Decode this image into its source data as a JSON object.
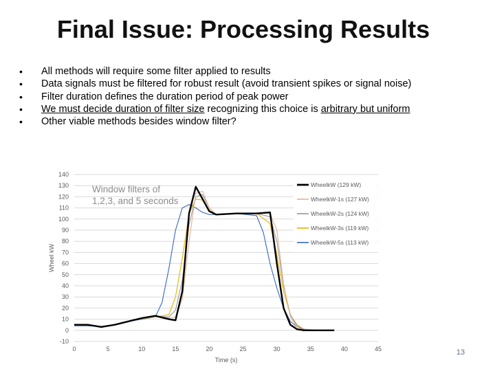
{
  "slide": {
    "title": "Final Issue: Processing Results",
    "bullet_glyph": "•",
    "bullets": [
      {
        "parts": [
          {
            "text": "All methods will require some filter applied to results",
            "u": false
          }
        ]
      },
      {
        "parts": [
          {
            "text": "Data signals must be filtered for robust result (avoid transient spikes or signal noise)",
            "u": false
          }
        ]
      },
      {
        "parts": [
          {
            "text": "Filter duration defines the duration period of peak power",
            "u": false
          }
        ]
      },
      {
        "parts": [
          {
            "text": "We must decide duration of filter size",
            "u": true
          },
          {
            "text": " recognizing this choice is ",
            "u": false
          },
          {
            "text": "arbitrary but uniform",
            "u": true
          }
        ]
      },
      {
        "parts": [
          {
            "text": "Other viable methods besides window filter?",
            "u": false
          }
        ]
      }
    ],
    "page_number": "13"
  },
  "chart_data": {
    "type": "line",
    "xlabel": "Time (s)",
    "ylabel": "Wheel kW",
    "xlim": [
      0,
      45
    ],
    "ylim": [
      -10,
      140
    ],
    "xticks": [
      0,
      5,
      10,
      15,
      20,
      25,
      30,
      35,
      40,
      45
    ],
    "yticks": [
      -10,
      0,
      10,
      20,
      30,
      40,
      50,
      60,
      70,
      80,
      90,
      100,
      110,
      120,
      130,
      140
    ],
    "grid": true,
    "legend_position": "top-right",
    "annotation": [
      "Window filters of",
      "1,2,3, and 5 seconds"
    ],
    "series": [
      {
        "name": "WheelkW (129 kW)",
        "color": "#000000",
        "x": [
          0,
          2,
          4,
          6,
          8,
          10,
          12,
          14,
          15,
          16,
          17,
          18,
          19,
          20,
          21,
          24,
          27,
          29,
          30,
          31,
          32,
          33,
          34,
          36,
          38.5
        ],
        "y": [
          5,
          5,
          3,
          5,
          8,
          11,
          13,
          10,
          9,
          35,
          105,
          129,
          118,
          107,
          104,
          105,
          105,
          106,
          60,
          20,
          5,
          1,
          0,
          0,
          0
        ]
      },
      {
        "name": "WheelkW-1s (127 kW)",
        "color": "#e2b89a",
        "x": [
          0,
          2,
          4,
          6,
          8,
          10,
          12,
          14,
          15,
          16,
          17,
          18,
          19,
          20,
          21,
          24,
          27,
          29,
          30,
          31,
          32,
          33,
          34,
          36,
          38.5
        ],
        "y": [
          5,
          5,
          3,
          5,
          8,
          11,
          12.5,
          11,
          12,
          28,
          80,
          123,
          125,
          110,
          104,
          105,
          105,
          105,
          90,
          42,
          12,
          3,
          0,
          0,
          0
        ]
      },
      {
        "name": "WheelkW-2s (124 kW)",
        "color": "#9e9e9e",
        "x": [
          0,
          2,
          4,
          6,
          8,
          10,
          12,
          14,
          15,
          16,
          17,
          18,
          19,
          20,
          21,
          24,
          27,
          29,
          30,
          31,
          32,
          33,
          34,
          36,
          38.5
        ],
        "y": [
          5,
          5,
          3.5,
          5,
          8,
          11,
          12.5,
          12,
          18,
          45,
          95,
          120,
          122,
          110,
          104,
          105,
          105,
          102,
          80,
          40,
          14,
          4,
          1,
          0,
          0
        ]
      },
      {
        "name": "WheelkW-3s (119 kW)",
        "color": "#e6b80f",
        "x": [
          0,
          2,
          4,
          6,
          8,
          10,
          12,
          14,
          15,
          16,
          17,
          18,
          19,
          20,
          21,
          24,
          27,
          29,
          30,
          31,
          32,
          33,
          34,
          36,
          38.5
        ],
        "y": [
          5,
          5,
          3.5,
          5,
          8,
          10.5,
          12,
          14,
          30,
          65,
          105,
          118,
          117,
          108,
          104,
          105,
          105,
          96,
          68,
          35,
          14,
          5,
          1,
          0,
          0
        ]
      },
      {
        "name": "WheelkW-5s (113 kW)",
        "color": "#4472c4",
        "x": [
          0,
          2,
          4,
          6,
          8,
          10,
          12,
          13,
          14,
          15,
          16,
          17,
          18,
          19,
          20,
          22,
          24,
          27,
          28,
          29,
          30,
          31,
          32,
          33,
          34,
          36,
          38.5
        ],
        "y": [
          4,
          4,
          3.5,
          5,
          8,
          10,
          12,
          25,
          55,
          90,
          110,
          113,
          110,
          106,
          104,
          104,
          105,
          103,
          88,
          60,
          38,
          20,
          8,
          3,
          1,
          0,
          0
        ]
      }
    ]
  }
}
